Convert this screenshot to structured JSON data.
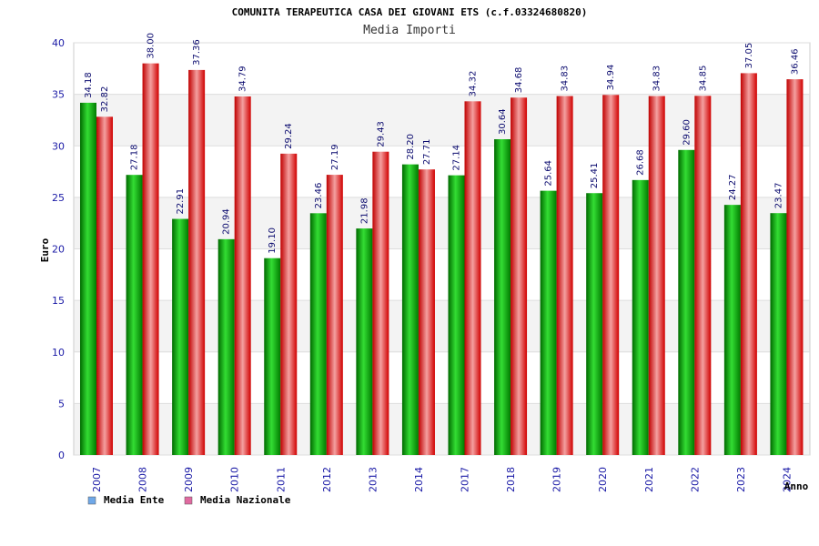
{
  "chart_data": {
    "type": "bar",
    "title": "COMUNITA TERAPEUTICA CASA DEI GIOVANI ETS (c.f.03324680820)",
    "subtitle": "Media Importi",
    "xlabel": "Anno",
    "ylabel": "Euro",
    "ylim": [
      0,
      40
    ],
    "yticks": [
      0,
      5,
      10,
      15,
      20,
      25,
      30,
      35,
      40
    ],
    "grid": true,
    "legend_position": "bottom-left",
    "categories": [
      "2007",
      "2008",
      "2009",
      "2010",
      "2011",
      "2012",
      "2013",
      "2014",
      "2017",
      "2018",
      "2019",
      "2020",
      "2021",
      "2022",
      "2023",
      "2024"
    ],
    "series": [
      {
        "name": "Media Ente",
        "color": "#00aa00",
        "legend_color": "#6fa8e8",
        "values": [
          34.18,
          27.18,
          22.91,
          20.94,
          19.1,
          23.46,
          21.98,
          28.2,
          27.14,
          30.64,
          25.64,
          25.41,
          26.68,
          29.6,
          24.27,
          23.47
        ],
        "labels": [
          "34.18",
          "27.18",
          "22.91",
          "20.94",
          "19.10",
          "23.46",
          "21.98",
          "28.20",
          "27.14",
          "30.64",
          "25.64",
          "25.41",
          "26.68",
          "29.60",
          "24.27",
          "23.47"
        ]
      },
      {
        "name": "Media Nazionale",
        "color": "#e01010",
        "legend_color": "#e06aa0",
        "values": [
          32.82,
          38.0,
          37.36,
          34.79,
          29.24,
          27.19,
          29.43,
          27.71,
          34.32,
          34.68,
          34.83,
          34.94,
          34.83,
          34.85,
          37.05,
          36.46
        ],
        "labels": [
          "32.82",
          "38.00",
          "37.36",
          "34.79",
          "29.24",
          "27.19",
          "29.43",
          "27.71",
          "34.32",
          "34.68",
          "34.83",
          "34.94",
          "34.83",
          "34.85",
          "37.05",
          "36.46"
        ]
      }
    ]
  }
}
